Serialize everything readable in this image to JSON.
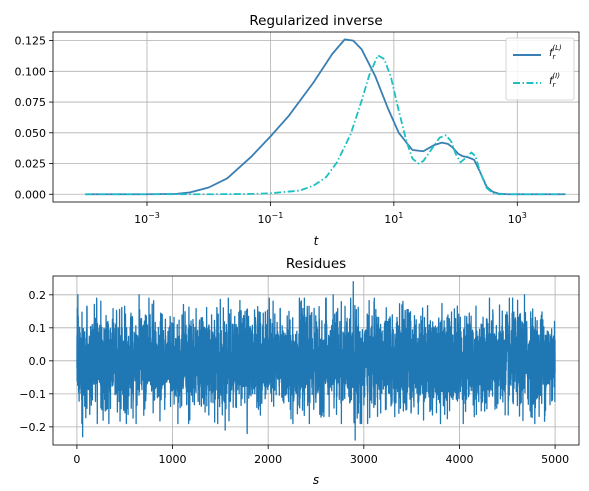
{
  "chart_data": [
    {
      "type": "line",
      "title": "Regularized inverse",
      "xlabel": "t",
      "ylabel": "",
      "xscale": "log",
      "xlim": [
        3e-05,
        10000
      ],
      "ylim": [
        -0.0063,
        0.132
      ],
      "grid": true,
      "legend_position": "top-right",
      "x_ticks": [
        {
          "value": 0.001,
          "base": "10",
          "exp": "−3"
        },
        {
          "value": 0.1,
          "base": "10",
          "exp": "−1"
        },
        {
          "value": 10,
          "base": "10",
          "exp": "1"
        },
        {
          "value": 1000,
          "base": "10",
          "exp": "3"
        }
      ],
      "y_ticks": [
        {
          "value": 0.0,
          "label": "0.000"
        },
        {
          "value": 0.025,
          "label": "0.025"
        },
        {
          "value": 0.05,
          "label": "0.050"
        },
        {
          "value": 0.075,
          "label": "0.075"
        },
        {
          "value": 0.1,
          "label": "0.100"
        },
        {
          "value": 0.125,
          "label": "0.125"
        }
      ],
      "series": [
        {
          "name": "f_r^(L)",
          "legend_main": "f",
          "legend_sub": "r",
          "legend_sup": "(L)",
          "color": "#3a7fb3",
          "style": "solid",
          "x": [
            0.0001,
            0.001,
            0.003,
            0.005,
            0.01,
            0.02,
            0.05,
            0.1,
            0.2,
            0.5,
            1,
            1.6,
            2.2,
            3,
            5,
            8,
            12,
            20,
            30,
            45,
            60,
            75,
            90,
            110,
            130,
            160,
            200,
            250,
            320,
            400,
            500,
            700,
            1000,
            3000,
            6000
          ],
          "y": [
            0.0,
            0.0,
            0.0003,
            0.0015,
            0.0055,
            0.013,
            0.031,
            0.047,
            0.064,
            0.091,
            0.114,
            0.126,
            0.125,
            0.118,
            0.096,
            0.07,
            0.05,
            0.036,
            0.035,
            0.04,
            0.042,
            0.041,
            0.038,
            0.033,
            0.031,
            0.03,
            0.028,
            0.018,
            0.006,
            0.002,
            0.0005,
            0.0,
            0.0,
            0.0,
            0.0
          ]
        },
        {
          "name": "f_r^(I)",
          "legend_main": "f",
          "legend_sub": "r",
          "legend_sup": "(I)",
          "color": "#1dc0c2",
          "style": "dashdot",
          "x": [
            0.0001,
            0.01,
            0.05,
            0.1,
            0.3,
            0.5,
            0.8,
            1.2,
            2,
            3,
            4,
            5.5,
            7,
            9,
            12,
            16,
            20,
            25,
            30,
            40,
            55,
            70,
            85,
            100,
            120,
            150,
            180,
            210,
            250,
            320,
            400,
            500,
            1000,
            6000
          ],
          "y": [
            0.0,
            0.0,
            0.0003,
            0.0008,
            0.003,
            0.007,
            0.014,
            0.026,
            0.049,
            0.076,
            0.097,
            0.113,
            0.11,
            0.095,
            0.068,
            0.043,
            0.029,
            0.025,
            0.027,
            0.036,
            0.046,
            0.048,
            0.043,
            0.033,
            0.026,
            0.03,
            0.034,
            0.031,
            0.018,
            0.005,
            0.001,
            0.0,
            0.0,
            0.0
          ]
        }
      ]
    },
    {
      "type": "line",
      "title": "Residues",
      "xlabel": "s",
      "ylabel": "",
      "xscale": "linear",
      "xlim": [
        -250,
        5250
      ],
      "ylim": [
        -0.255,
        0.257
      ],
      "grid": true,
      "x_ticks": [
        {
          "value": 0,
          "label": "0"
        },
        {
          "value": 1000,
          "label": "1000"
        },
        {
          "value": 2000,
          "label": "2000"
        },
        {
          "value": 3000,
          "label": "3000"
        },
        {
          "value": 4000,
          "label": "4000"
        },
        {
          "value": 5000,
          "label": "5000"
        }
      ],
      "y_ticks": [
        {
          "value": -0.2,
          "label": "−0.2"
        },
        {
          "value": -0.1,
          "label": "−0.1"
        },
        {
          "value": 0.0,
          "label": "0.0"
        },
        {
          "value": 0.1,
          "label": "0.1"
        },
        {
          "value": 0.2,
          "label": "0.2"
        }
      ],
      "series": [
        {
          "color": "#1f77b4",
          "style": "solid",
          "x_range": [
            0,
            5000
          ],
          "n_points": 5000,
          "approx_std": 0.07,
          "noise_seed": 7,
          "peaks": [
            {
              "x": 10,
              "y": 0.2
            },
            {
              "x": 60,
              "y": -0.23
            },
            {
              "x": 650,
              "y": 0.2
            },
            {
              "x": 1550,
              "y": -0.21
            },
            {
              "x": 1780,
              "y": -0.22
            },
            {
              "x": 2680,
              "y": 0.2
            },
            {
              "x": 2890,
              "y": 0.24
            },
            {
              "x": 2910,
              "y": -0.24
            },
            {
              "x": 4680,
              "y": 0.2
            },
            {
              "x": 4900,
              "y": -0.15
            }
          ]
        }
      ]
    }
  ]
}
